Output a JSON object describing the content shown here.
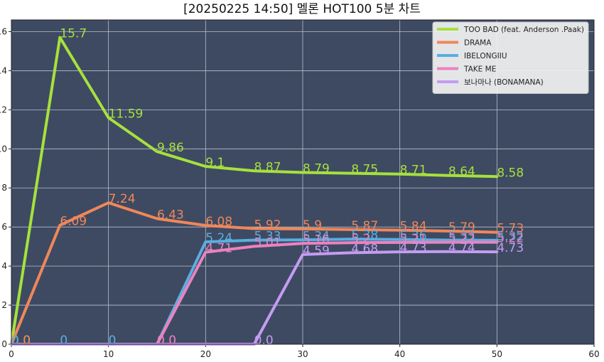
{
  "chart_data": {
    "type": "line",
    "title": "[20250225 14:50] 멜론 HOT100 5분 차트",
    "xlabel": "",
    "ylabel": "",
    "xlim": [
      0,
      60
    ],
    "ylim": [
      0,
      16.6
    ],
    "x_ticks": [
      "0",
      "10",
      "20",
      "30",
      "40",
      "50",
      "60"
    ],
    "y_ticks": [
      "0",
      "2",
      "4",
      "6",
      "8",
      "10",
      "12",
      "14",
      "16"
    ],
    "grid": true,
    "legend_position": "top-right",
    "plot_background": "#3e4a62",
    "x": [
      0,
      5,
      10,
      15,
      20,
      25,
      30,
      35,
      40,
      45,
      50
    ],
    "series": [
      {
        "name": "TOO BAD (feat. Anderson .Paak)",
        "color": "#a6e13c",
        "values": [
          0.0,
          15.7,
          11.59,
          9.86,
          9.1,
          8.87,
          8.79,
          8.75,
          8.71,
          8.64,
          8.58
        ],
        "labels": [
          "0.0",
          "15.7",
          "11.59",
          "9.86",
          "9.1",
          "8.87",
          "8.79",
          "8.75",
          "8.71",
          "8.64",
          "8.58"
        ]
      },
      {
        "name": "DRAMA",
        "color": "#f0875a",
        "values": [
          0.0,
          6.09,
          7.24,
          6.43,
          6.08,
          5.92,
          5.9,
          5.87,
          5.84,
          5.79,
          5.73
        ],
        "labels": [
          "0.0",
          "6.09",
          "7.24",
          "6.43",
          "6.08",
          "5.92",
          "5.9",
          "5.87",
          "5.84",
          "5.79",
          "5.73"
        ]
      },
      {
        "name": "IBELONGIIU",
        "color": "#5aaee0",
        "values": [
          0,
          0,
          0,
          0,
          5.24,
          5.33,
          5.34,
          5.38,
          5.36,
          5.33,
          5.32
        ],
        "labels": [
          "0",
          "0",
          "0",
          "0",
          "5.24",
          "5.33",
          "5.34",
          "5.38",
          "5.36",
          "5.33",
          "5.32"
        ]
      },
      {
        "name": "TAKE ME",
        "color": "#ec82c0",
        "values": [
          0,
          0,
          0,
          0.0,
          4.71,
          5.01,
          5.16,
          5.2,
          5.21,
          5.22,
          5.22
        ],
        "labels": [
          "",
          "",
          "",
          "0.0",
          "4.71",
          "5.01",
          "5.16",
          "5.2",
          "5.21",
          "5.22",
          "5.22"
        ]
      },
      {
        "name": "보나마나 (BONAMANA)",
        "color": "#c49cf2",
        "values": [
          0,
          0,
          0,
          0,
          0,
          0.0,
          4.59,
          4.68,
          4.73,
          4.74,
          4.73
        ],
        "labels": [
          "",
          "",
          "",
          "",
          "",
          "0.0",
          "4.59",
          "4.68",
          "4.73",
          "4.74",
          "4.73"
        ]
      }
    ]
  }
}
